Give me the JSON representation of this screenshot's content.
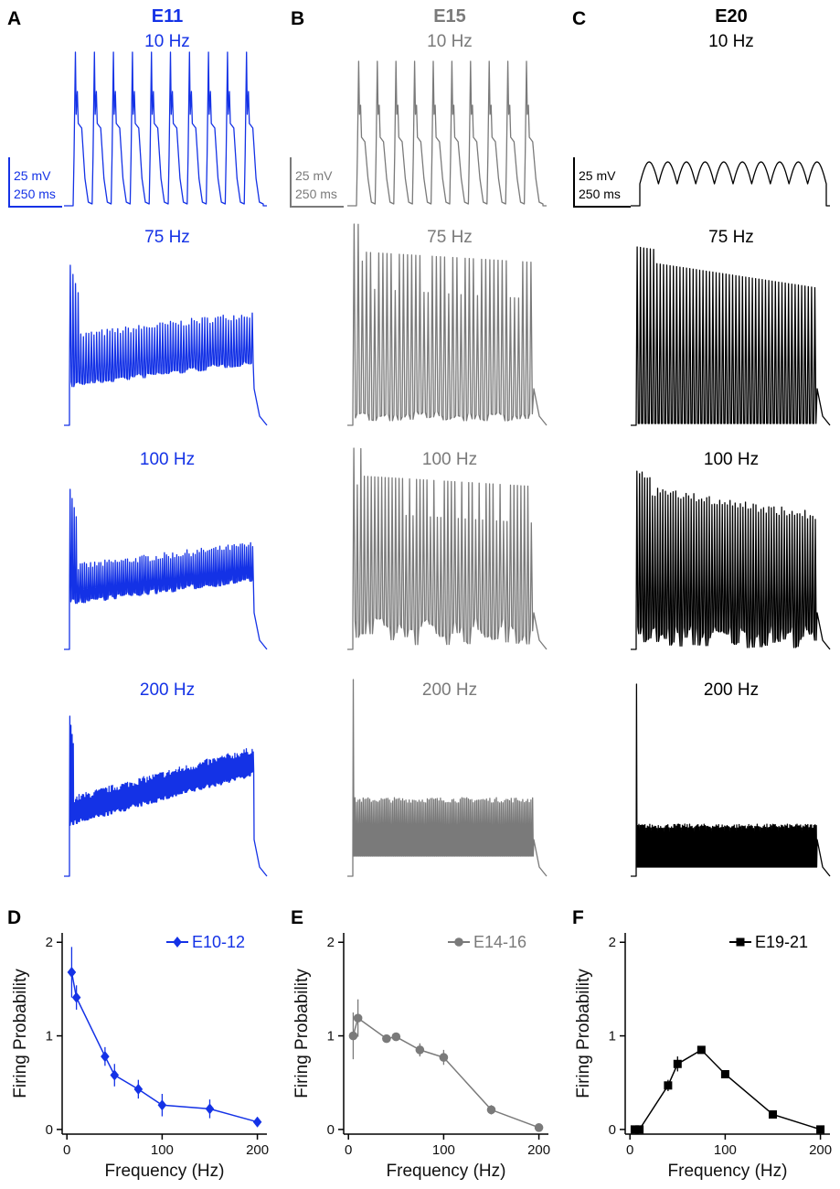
{
  "panel_letters": [
    "A",
    "B",
    "C",
    "D",
    "E",
    "F"
  ],
  "colors": {
    "E11": "#1432e6",
    "E15": "#7a7a7a",
    "E20": "#000000"
  },
  "traces": {
    "columns": [
      {
        "title": "E11",
        "color": "#1432e6",
        "scale_mv": "25 mV",
        "scale_ms": "250 ms"
      },
      {
        "title": "E15",
        "color": "#7a7a7a",
        "scale_mv": "25 mV",
        "scale_ms": "250 ms"
      },
      {
        "title": "E20",
        "color": "#000000",
        "scale_mv": "25 mV",
        "scale_ms": "250 ms"
      }
    ],
    "rows": [
      "10 Hz",
      "75 Hz",
      "100 Hz",
      "200 Hz"
    ]
  },
  "chart_data": [
    {
      "type": "line",
      "panel": "D",
      "legend": "E10-12",
      "color": "#1432e6",
      "marker": "diamond",
      "legend_position": "top-right",
      "xlabel": "Frequency (Hz)",
      "ylabel": "Firing Probability",
      "xlim": [
        -5,
        210
      ],
      "ylim": [
        -0.05,
        2.1
      ],
      "xticks": [
        "0",
        "100",
        "200"
      ],
      "yticks": [
        "0",
        "1",
        "2"
      ],
      "series": [
        {
          "name": "E10-12",
          "x": [
            5,
            10,
            40,
            50,
            75,
            100,
            150,
            200
          ],
          "y": [
            1.68,
            1.41,
            0.78,
            0.58,
            0.43,
            0.26,
            0.22,
            0.08
          ],
          "err": [
            0.27,
            0.13,
            0.1,
            0.12,
            0.1,
            0.12,
            0.1,
            0.05
          ]
        }
      ]
    },
    {
      "type": "line",
      "panel": "E",
      "legend": "E14-16",
      "color": "#7a7a7a",
      "marker": "circle",
      "legend_position": "top-right",
      "xlabel": "Frequency (Hz)",
      "ylabel": "Firing Probability",
      "xlim": [
        -5,
        210
      ],
      "ylim": [
        -0.05,
        2.1
      ],
      "xticks": [
        "0",
        "100",
        "200"
      ],
      "yticks": [
        "0",
        "1",
        "2"
      ],
      "series": [
        {
          "name": "E14-16",
          "x": [
            5,
            10,
            40,
            50,
            75,
            100,
            150,
            200
          ],
          "y": [
            1.0,
            1.19,
            0.97,
            0.99,
            0.85,
            0.77,
            0.21,
            0.02
          ],
          "err": [
            0.25,
            0.2,
            0.03,
            0.03,
            0.07,
            0.08,
            0.05,
            0.02
          ]
        }
      ]
    },
    {
      "type": "line",
      "panel": "F",
      "legend": "E19-21",
      "color": "#000000",
      "marker": "square",
      "legend_position": "top-right",
      "xlabel": "Frequency (Hz)",
      "ylabel": "Firing Probability",
      "xlim": [
        -5,
        210
      ],
      "ylim": [
        -0.05,
        2.1
      ],
      "xticks": [
        "0",
        "100",
        "200"
      ],
      "yticks": [
        "0",
        "1",
        "2"
      ],
      "series": [
        {
          "name": "E19-21",
          "x": [
            5,
            10,
            40,
            50,
            75,
            100,
            150,
            200
          ],
          "y": [
            0.0,
            0.0,
            0.47,
            0.7,
            0.85,
            0.59,
            0.16,
            0.0
          ],
          "err": [
            0.01,
            0.01,
            0.06,
            0.08,
            0.04,
            0.03,
            0.02,
            0.01
          ]
        }
      ]
    }
  ]
}
